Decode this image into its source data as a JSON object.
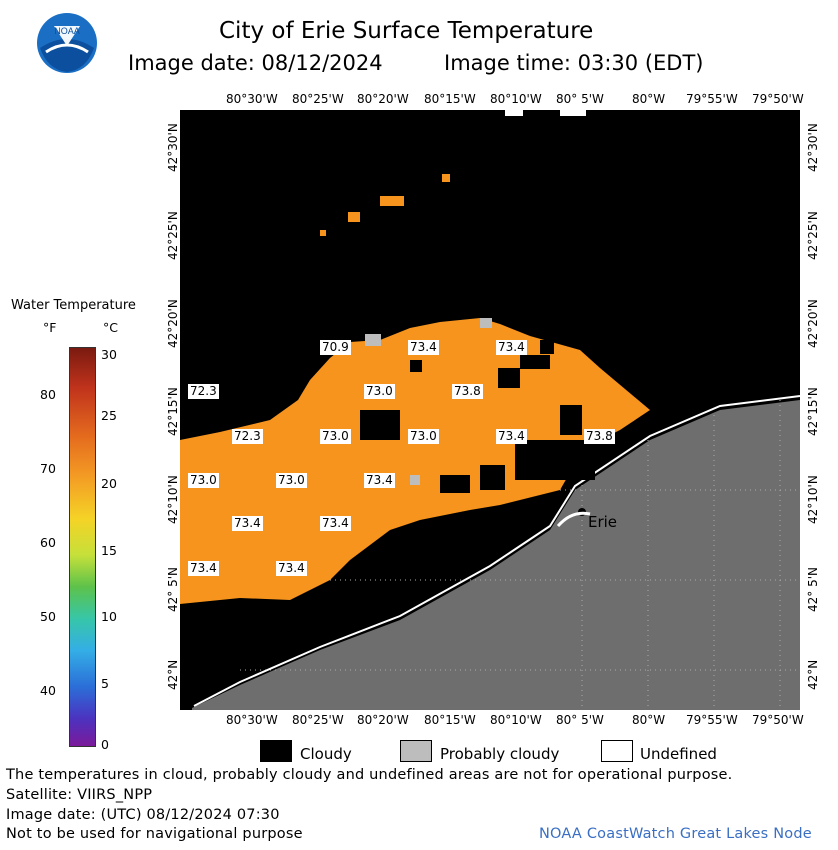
{
  "header": {
    "title": "City of Erie Surface Temperature",
    "image_date_label": "Image date: 08/12/2024",
    "image_time_label": "Image time: 03:30 (EDT)"
  },
  "logo": {
    "text": "NOAA"
  },
  "legend": {
    "title": "Water Temperature",
    "unit_f": "°F",
    "unit_c": "°C",
    "f_ticks": [
      "80",
      "70",
      "60",
      "50",
      "40"
    ],
    "c_ticks": [
      "30",
      "25",
      "20",
      "15",
      "10",
      "5",
      "0"
    ]
  },
  "map": {
    "lon_ticks": [
      "80°30'W",
      "80°25'W",
      "80°20'W",
      "80°15'W",
      "80°10'W",
      "80° 5'W",
      "80°W",
      "79°55'W",
      "79°50'W"
    ],
    "lat_ticks": [
      "42°30'N",
      "42°25'N",
      "42°20'N",
      "42°15'N",
      "42°10'N",
      "42° 5'N",
      "42°N"
    ],
    "city_label": "Erie",
    "temps": [
      "70.9",
      "73.4",
      "73.4",
      "72.3",
      "73.0",
      "73.8",
      "72.3",
      "73.0",
      "73.0",
      "73.4",
      "73.8",
      "73.0",
      "73.0",
      "73.4",
      "73.4",
      "73.4",
      "73.4",
      "73.4"
    ],
    "colors": {
      "water": "#f7941d",
      "land": "#6e6e6e",
      "cloud": "#000000",
      "probably_cloudy": "#bdbdbd"
    }
  },
  "key": {
    "cloudy": "Cloudy",
    "probably_cloudy": "Probably cloudy",
    "undefined": "Undefined"
  },
  "footer": {
    "disclaimer": "The temperatures in cloud, probably cloudy and undefined areas are not for operational purpose.",
    "satellite": "Satellite: VIIRS_NPP",
    "image_date_utc": "Image date: (UTC) 08/12/2024  07:30",
    "nav_warning": "Not to be used for navigational purpose",
    "credit": "NOAA CoastWatch Great Lakes Node"
  }
}
